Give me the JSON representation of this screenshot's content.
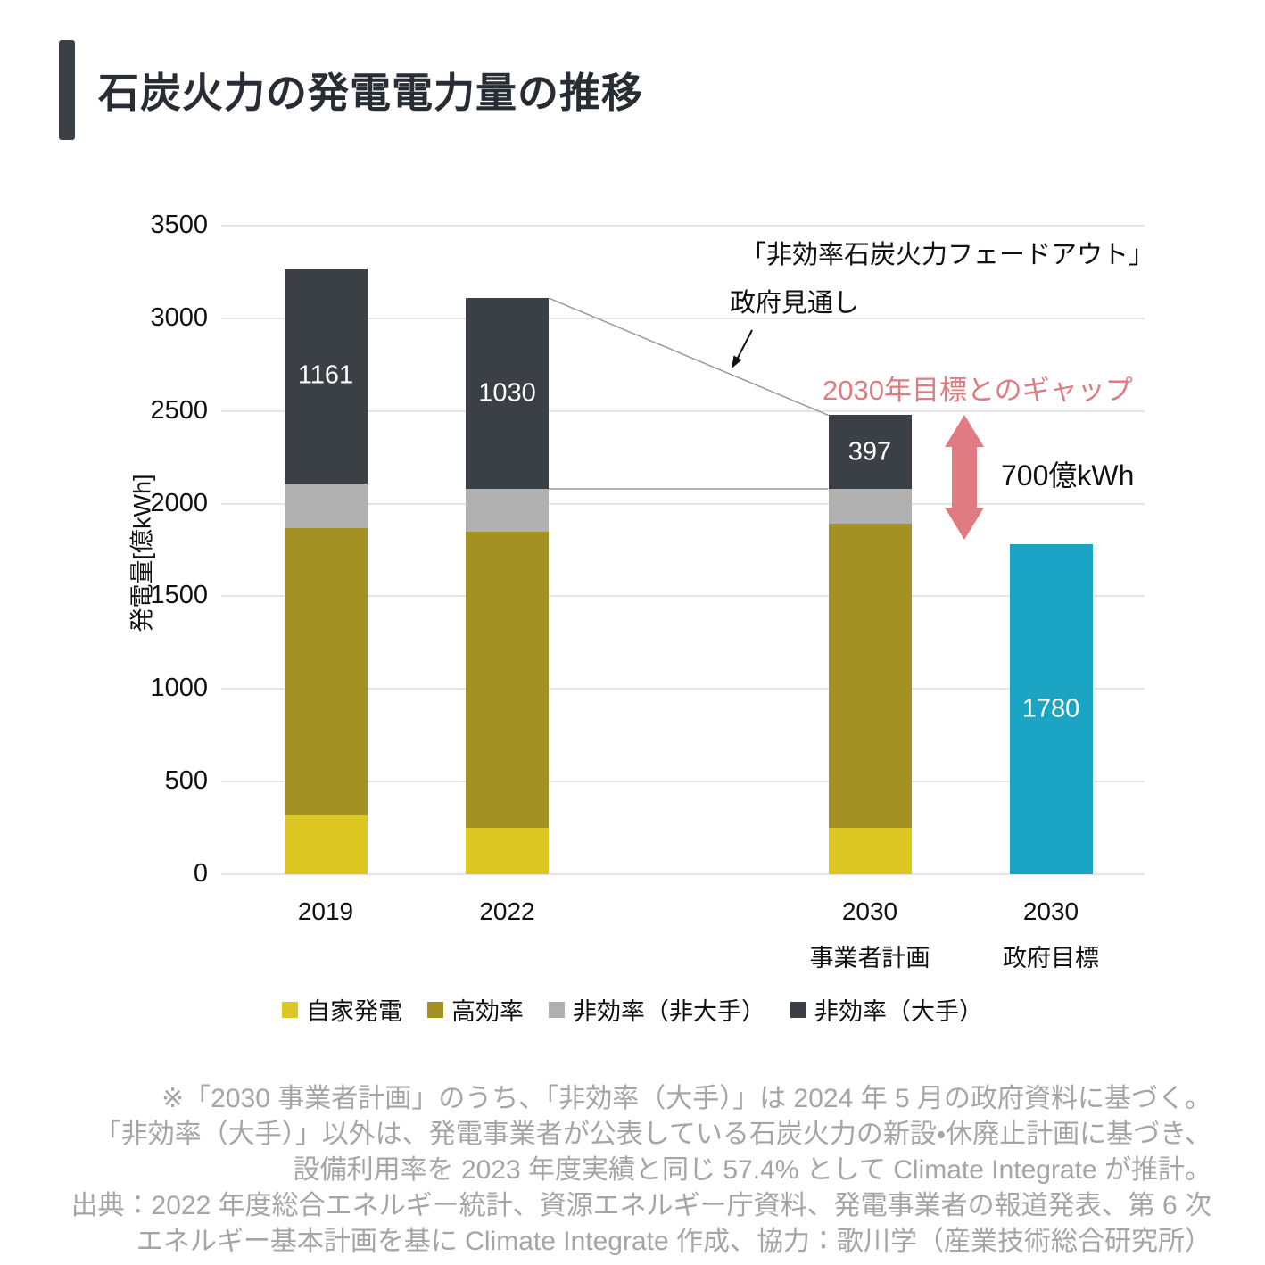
{
  "page": {
    "title": "石炭火力の発電電力量の推移"
  },
  "colors": {
    "self_generation": "#ddc722",
    "high_efficiency": "#a39223",
    "inefficient_small": "#b1b1b1",
    "inefficient_major": "#3b4046",
    "gov_target_blue": "#1ba4c3",
    "gap_pink": "#e07b81",
    "grid": "#e4e4e4",
    "footnote_gray": "#a5a5a5",
    "connector_gray": "#999999"
  },
  "chart_data": {
    "type": "bar",
    "stacked": true,
    "title": "石炭火力の発電電力量の推移",
    "xlabel": "",
    "ylabel": "発電量[億kWh]",
    "ylim": [
      0,
      3500
    ],
    "yticks": [
      0,
      500,
      1000,
      1500,
      2000,
      2500,
      3000,
      3500
    ],
    "grid": true,
    "legend_position": "bottom",
    "categories": [
      "2019",
      "2022",
      "2030",
      "2030"
    ],
    "category_sublabels": [
      "",
      "",
      "事業者計画",
      "政府目標"
    ],
    "series": [
      {
        "name": "自家発電",
        "color": "#ddc722",
        "values": [
          320,
          250,
          250,
          0
        ]
      },
      {
        "name": "高効率",
        "color": "#a39223",
        "values": [
          1550,
          1600,
          1640,
          0
        ]
      },
      {
        "name": "非効率（非大手）",
        "color": "#b1b1b1",
        "values": [
          240,
          230,
          190,
          0
        ]
      },
      {
        "name": "非効率（大手）",
        "color": "#3b4046",
        "values": [
          1161,
          1030,
          397,
          0
        ],
        "value_labels": [
          "1161",
          "1030",
          "397",
          ""
        ]
      },
      {
        "name": "政府目標",
        "color": "#1ba4c3",
        "values": [
          0,
          0,
          0,
          1780
        ],
        "value_labels": [
          "",
          "",
          "",
          "1780"
        ],
        "in_legend": false
      }
    ],
    "totals": [
      3271,
      3110,
      2477,
      1780
    ],
    "connectors": [
      {
        "from_bar": 1,
        "to_bar": 2,
        "at": "total"
      },
      {
        "from_bar": 1,
        "to_bar": 2,
        "at": "cum3"
      }
    ]
  },
  "legend": {
    "items": [
      {
        "label": "自家発電",
        "color": "#ddc722"
      },
      {
        "label": "高効率",
        "color": "#a39223"
      },
      {
        "label": "非効率（非大手）",
        "color": "#b1b1b1"
      },
      {
        "label": "非効率（大手）",
        "color": "#3b4046"
      }
    ]
  },
  "annotations": {
    "fadeout_title": "「非効率石炭火力フェードアウト」",
    "fadeout_subtitle": "政府見通し",
    "gap_title": "2030年目標とのギャップ",
    "gap_value_label": "700億kWh",
    "gap_value": 700,
    "gap_color": "#e07b81"
  },
  "footnote": {
    "color": "#a5a5a5",
    "lines": [
      "※「2030 事業者計画」のうち、「非効率（大手）」は 2024 年 5 月の政府資料に基づく。",
      "「非効率（大手）」以外は、発電事業者が公表している石炭火力の新設・休廃止計画に基づき、",
      "設備利用率を 2023 年度実績と同じ 57.4% として Climate Integrate が推計。",
      "出典：2022 年度総合エネルギー統計、資源エネルギー庁資料、発電事業者の報道発表、第 6 次",
      "エネルギー基本計画を基に Climate Integrate 作成、協力：歌川学（産業技術総合研究所）"
    ]
  }
}
